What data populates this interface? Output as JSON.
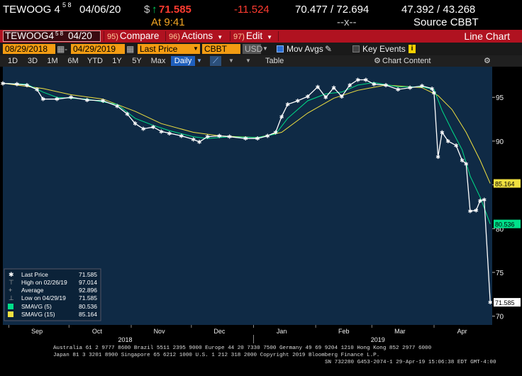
{
  "header": {
    "ticker": "TEWOOG 4",
    "coupon_frac": "5 8",
    "maturity": "04/06/20",
    "price_prefix": "$",
    "arrow": "↑",
    "price": "71.585",
    "change": "-11.524",
    "bid_ask": "70.477 / 72.694",
    "yields": "47.392 / 43.268",
    "time_label": "At 9:41",
    "dashes": "--x--",
    "source": "Source CBBT"
  },
  "toolbar": {
    "ticker_label": "TEWOOG4",
    "ticker_frac": "5 8",
    "ticker_date": "04/20",
    "compare_num": "95)",
    "compare_label": "Compare",
    "actions_num": "96)",
    "actions_label": "Actions",
    "edit_num": "97)",
    "edit_label": "Edit",
    "title": "Line Chart"
  },
  "options": {
    "start_date": "08/29/2018",
    "end_date": "04/29/2019",
    "field": "Last Price",
    "source": "CBBT",
    "currency": "USD",
    "mov_avgs": "Mov Avgs",
    "key_events": "Key Events"
  },
  "ranges": {
    "items": [
      "1D",
      "3D",
      "1M",
      "6M",
      "YTD",
      "1Y",
      "5Y",
      "Max"
    ],
    "frequency": "Daily",
    "table": "Table",
    "chart_content": "Chart Content"
  },
  "legend": {
    "rows": [
      {
        "label": "Last Price",
        "value": "71.585"
      },
      {
        "label": "High on 02/26/19",
        "value": "97.014"
      },
      {
        "label": "Average",
        "value": "92.896"
      },
      {
        "label": "Low on 04/29/19",
        "value": "71.585"
      },
      {
        "label": "SMAVG (5)",
        "value": "80.536"
      },
      {
        "label": "SMAVG (15)",
        "value": "85.164"
      }
    ]
  },
  "colors": {
    "plot_bg": "#0f2a45",
    "price": "#ffffff",
    "sma5": "#00e08a",
    "sma15": "#f0e040",
    "toolbar": "#b01220",
    "accent": "#f39c12"
  },
  "footer": {
    "line1": "Australia 61 2 9777 8600 Brazil 5511 2395 9000 Europe 44 20 7330 7500 Germany 49 69 9204 1210 Hong Kong 852 2977 6000",
    "line2": "Japan 81 3 3201 8900      Singapore 65 6212 1000      U.S. 1 212 318 2000          Copyright 2019 Bloomberg Finance L.P.",
    "line3": "SN 732280 G453-2074-1 29-Apr-19 15:06:38 EDT  GMT-4:00"
  },
  "chart_data": {
    "type": "line",
    "ylim": [
      69,
      98.5
    ],
    "xlim": [
      "2018-08-29",
      "2019-04-30"
    ],
    "y_ticks": [
      70,
      75,
      80,
      85,
      90,
      95
    ],
    "x_month_labels": [
      "Sep",
      "Oct",
      "Nov",
      "Dec",
      "Jan",
      "Feb",
      "Mar",
      "Apr"
    ],
    "x_month_dates": [
      "2018-09-15",
      "2018-10-15",
      "2018-11-15",
      "2018-12-15",
      "2019-01-15",
      "2019-02-15",
      "2019-03-15",
      "2019-04-15"
    ],
    "year_labels": [
      "2018",
      "2019"
    ],
    "year_dates": [
      "2018-10-29",
      "2019-03-04"
    ],
    "last_value_tags": [
      {
        "series": "SMAVG (15)",
        "value": 85.164
      },
      {
        "series": "SMAVG (5)",
        "value": 80.536
      },
      {
        "series": "Last Price",
        "value": 71.585
      }
    ],
    "series": [
      {
        "name": "Last Price",
        "points": [
          [
            "2018-08-29",
            96.6
          ],
          [
            "2018-09-05",
            96.5
          ],
          [
            "2018-09-10",
            96.4
          ],
          [
            "2018-09-15",
            95.9
          ],
          [
            "2018-09-18",
            94.8
          ],
          [
            "2018-09-25",
            94.8
          ],
          [
            "2018-10-02",
            95.0
          ],
          [
            "2018-10-10",
            94.7
          ],
          [
            "2018-10-18",
            94.6
          ],
          [
            "2018-10-25",
            94.0
          ],
          [
            "2018-10-30",
            93.1
          ],
          [
            "2018-11-03",
            92.0
          ],
          [
            "2018-11-07",
            91.4
          ],
          [
            "2018-11-12",
            91.6
          ],
          [
            "2018-11-16",
            91.1
          ],
          [
            "2018-11-20",
            90.9
          ],
          [
            "2018-11-26",
            90.6
          ],
          [
            "2018-12-02",
            90.2
          ],
          [
            "2018-12-05",
            89.9
          ],
          [
            "2018-12-09",
            90.5
          ],
          [
            "2018-12-15",
            90.6
          ],
          [
            "2018-12-20",
            90.5
          ],
          [
            "2018-12-28",
            90.3
          ],
          [
            "2019-01-03",
            90.3
          ],
          [
            "2019-01-08",
            90.6
          ],
          [
            "2019-01-12",
            91.0
          ],
          [
            "2019-01-15",
            92.8
          ],
          [
            "2019-01-18",
            94.2
          ],
          [
            "2019-01-23",
            94.6
          ],
          [
            "2019-01-28",
            95.1
          ],
          [
            "2019-02-02",
            96.2
          ],
          [
            "2019-02-06",
            95.0
          ],
          [
            "2019-02-10",
            96.1
          ],
          [
            "2019-02-14",
            95.1
          ],
          [
            "2019-02-18",
            96.4
          ],
          [
            "2019-02-22",
            97.0
          ],
          [
            "2019-02-26",
            97.0
          ],
          [
            "2019-03-02",
            96.5
          ],
          [
            "2019-03-08",
            96.4
          ],
          [
            "2019-03-14",
            95.9
          ],
          [
            "2019-03-20",
            96.1
          ],
          [
            "2019-03-26",
            96.3
          ],
          [
            "2019-03-31",
            96.0
          ],
          [
            "2019-04-01",
            95.5
          ],
          [
            "2019-04-03",
            88.2
          ],
          [
            "2019-04-05",
            91.0
          ],
          [
            "2019-04-08",
            90.0
          ],
          [
            "2019-04-12",
            89.5
          ],
          [
            "2019-04-15",
            87.8
          ],
          [
            "2019-04-17",
            87.4
          ],
          [
            "2019-04-19",
            82.0
          ],
          [
            "2019-04-22",
            82.1
          ],
          [
            "2019-04-24",
            83.2
          ],
          [
            "2019-04-26",
            83.3
          ],
          [
            "2019-04-29",
            71.585
          ]
        ]
      },
      {
        "name": "SMAVG (5)",
        "points": [
          [
            "2018-08-29",
            96.6
          ],
          [
            "2018-09-10",
            96.5
          ],
          [
            "2018-09-18",
            95.6
          ],
          [
            "2018-09-25",
            95.0
          ],
          [
            "2018-10-10",
            94.8
          ],
          [
            "2018-10-25",
            94.2
          ],
          [
            "2018-11-03",
            92.6
          ],
          [
            "2018-11-12",
            91.8
          ],
          [
            "2018-11-20",
            91.2
          ],
          [
            "2018-12-02",
            90.5
          ],
          [
            "2018-12-09",
            90.3
          ],
          [
            "2018-12-20",
            90.5
          ],
          [
            "2019-01-03",
            90.4
          ],
          [
            "2019-01-12",
            90.8
          ],
          [
            "2019-01-18",
            92.6
          ],
          [
            "2019-01-28",
            94.6
          ],
          [
            "2019-02-06",
            95.4
          ],
          [
            "2019-02-14",
            95.6
          ],
          [
            "2019-02-22",
            96.4
          ],
          [
            "2019-03-02",
            96.7
          ],
          [
            "2019-03-14",
            96.2
          ],
          [
            "2019-03-26",
            96.2
          ],
          [
            "2019-04-01",
            95.9
          ],
          [
            "2019-04-05",
            93.5
          ],
          [
            "2019-04-10",
            91.2
          ],
          [
            "2019-04-15",
            89.0
          ],
          [
            "2019-04-19",
            86.0
          ],
          [
            "2019-04-24",
            83.6
          ],
          [
            "2019-04-29",
            80.536
          ]
        ]
      },
      {
        "name": "SMAVG (15)",
        "points": [
          [
            "2018-08-29",
            96.6
          ],
          [
            "2018-09-18",
            96.0
          ],
          [
            "2018-10-02",
            95.3
          ],
          [
            "2018-10-18",
            94.8
          ],
          [
            "2018-11-03",
            93.4
          ],
          [
            "2018-11-16",
            92.0
          ],
          [
            "2018-12-02",
            91.0
          ],
          [
            "2018-12-15",
            90.6
          ],
          [
            "2019-01-03",
            90.4
          ],
          [
            "2019-01-15",
            91.0
          ],
          [
            "2019-01-28",
            93.2
          ],
          [
            "2019-02-10",
            94.9
          ],
          [
            "2019-02-22",
            95.8
          ],
          [
            "2019-03-08",
            96.4
          ],
          [
            "2019-03-26",
            96.1
          ],
          [
            "2019-04-03",
            95.2
          ],
          [
            "2019-04-10",
            93.6
          ],
          [
            "2019-04-17",
            91.0
          ],
          [
            "2019-04-24",
            87.8
          ],
          [
            "2019-04-29",
            85.164
          ]
        ]
      }
    ]
  }
}
